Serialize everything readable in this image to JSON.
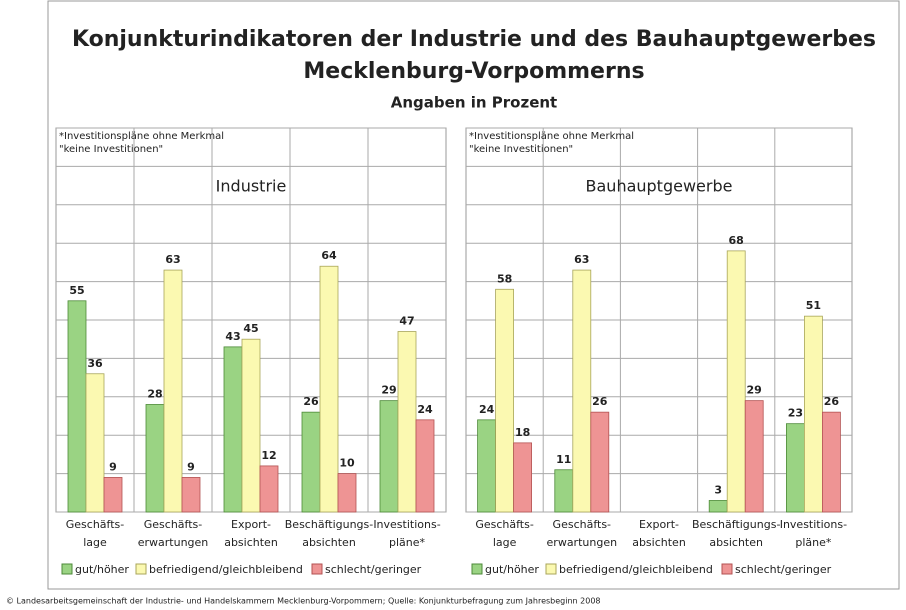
{
  "title": [
    "Konjunkturindikatoren der Industrie und des Bauhauptgewerbes",
    "Mecklenburg-Vorpommerns"
  ],
  "subtitle": "Angaben in Prozent",
  "footer": "© Landesarbeitsgemeinschaft der Industrie- und Handelskammern Mecklenburg-Vorpommern; Quelle: Konjunkturbefragung zum Jahresbeginn 2008",
  "chart_data": [
    {
      "type": "bar",
      "title": "Industrie",
      "note": [
        "*Investitionspläne ohne Merkmal",
        "\"keine Investitionen\""
      ],
      "categories": [
        [
          "Geschäfts-",
          "lage"
        ],
        [
          "Geschäfts-",
          "erwartungen"
        ],
        [
          "Export-",
          "absichten"
        ],
        [
          "Beschäftigungs-",
          "absichten"
        ],
        [
          "Investitions-",
          "pläne*"
        ]
      ],
      "series": [
        {
          "name": "gut/höher",
          "color": "#9ad383",
          "values": [
            55,
            28,
            43,
            26,
            29
          ]
        },
        {
          "name": "befriedigend/gleichbleibend",
          "color": "#fbf9b1",
          "values": [
            36,
            63,
            45,
            64,
            47
          ]
        },
        {
          "name": "schlecht/geringer",
          "color": "#ee9494",
          "values": [
            9,
            9,
            12,
            10,
            24
          ]
        }
      ],
      "ylim": [
        0,
        100
      ],
      "yticks": [
        0,
        10,
        20,
        30,
        40,
        50,
        60,
        70,
        80,
        90,
        100
      ],
      "grid": true
    },
    {
      "type": "bar",
      "title": "Bauhauptgewerbe",
      "note": [
        "*Investitionspläne ohne Merkmal",
        "\"keine Investitionen\""
      ],
      "categories": [
        [
          "Geschäfts-",
          "lage"
        ],
        [
          "Geschäfts-",
          "erwartungen"
        ],
        [
          "Export-",
          "absichten"
        ],
        [
          "Beschäftigungs-",
          "absichten"
        ],
        [
          "Investitions-",
          "pläne*"
        ]
      ],
      "series": [
        {
          "name": "gut/höher",
          "color": "#9ad383",
          "values": [
            24,
            11,
            null,
            3,
            23
          ]
        },
        {
          "name": "befriedigend/gleichbleibend",
          "color": "#fbf9b1",
          "values": [
            58,
            63,
            null,
            68,
            51
          ]
        },
        {
          "name": "schlecht/geringer",
          "color": "#ee9494",
          "values": [
            18,
            26,
            null,
            29,
            26
          ]
        }
      ],
      "ylim": [
        0,
        100
      ],
      "yticks": [
        0,
        10,
        20,
        30,
        40,
        50,
        60,
        70,
        80,
        90,
        100
      ],
      "grid": true
    }
  ]
}
